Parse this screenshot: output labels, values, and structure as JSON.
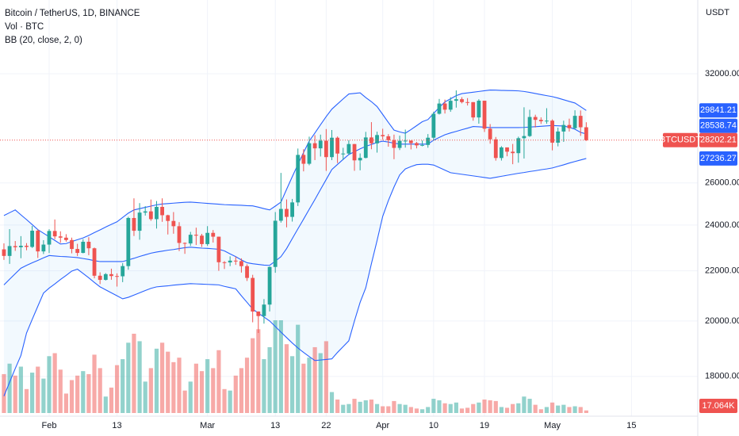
{
  "chart_data": {
    "type": "candlestick",
    "title": "Bitcoin / TetherUS, 1D, BINANCE",
    "symbol": "BTCUSDT",
    "ylabel": "USDT",
    "log_scale": true,
    "grid": true,
    "ylim": [
      16440,
      36810
    ],
    "yticks": [
      {
        "value": 18000,
        "label": "18000.00"
      },
      {
        "value": 20000,
        "label": "20000.00"
      },
      {
        "value": 22000,
        "label": "22000.00"
      },
      {
        "value": 24000,
        "label": "24000.00"
      },
      {
        "value": 26000,
        "label": "26000.00"
      },
      {
        "value": 32000,
        "label": "32000.00"
      }
    ],
    "categories": [
      null,
      null,
      null,
      null,
      null,
      null,
      null,
      null,
      "Feb",
      null,
      null,
      null,
      null,
      null,
      null,
      null,
      null,
      null,
      null,
      null,
      "13",
      null,
      null,
      null,
      null,
      null,
      null,
      null,
      null,
      null,
      null,
      null,
      null,
      null,
      null,
      null,
      "Mar",
      null,
      null,
      null,
      null,
      null,
      null,
      null,
      null,
      null,
      null,
      null,
      "13",
      null,
      null,
      null,
      null,
      null,
      null,
      null,
      null,
      "22",
      null,
      null,
      null,
      null,
      null,
      null,
      null,
      null,
      null,
      "Apr",
      null,
      null,
      null,
      null,
      null,
      null,
      null,
      null,
      "10",
      null,
      null,
      null,
      null,
      null,
      null,
      null,
      null,
      "19",
      null,
      null,
      null,
      null,
      null,
      null,
      null,
      null,
      null,
      null,
      null,
      "May",
      null,
      null,
      null,
      null,
      null,
      null,
      null,
      null,
      null,
      null,
      null,
      null,
      null,
      "15"
    ],
    "up_color": "#26a69a",
    "down_color": "#ef5350",
    "ohlc": {
      "open": [
        22917,
        22632,
        23060,
        23009,
        23074,
        23023,
        23743,
        22827,
        23125,
        23732,
        23488,
        23431,
        23326,
        22933,
        22762,
        23249,
        22963,
        21796,
        21625,
        21862,
        21783,
        21773,
        22199,
        24324,
        23741,
        24574,
        24632,
        24271,
        24842,
        24453,
        24188,
        23947,
        23198,
        23175,
        23561,
        23522,
        23147,
        23646,
        23475,
        22362,
        22354,
        22430,
        22410,
        22197,
        21705,
        20363,
        20188,
        20633,
        22163,
        24197,
        24746,
        24375,
        25055,
        27423,
        26965,
        28038,
        27767,
        28175,
        27307,
        28333,
        27493,
        27494,
        27994,
        27139,
        27268,
        28348,
        28033,
        28478,
        28411,
        28200,
        27790,
        28169,
        28176,
        28045,
        27923,
        27947,
        28333,
        29653,
        30235,
        29884,
        30394,
        30485,
        30318,
        30315,
        29446,
        30398,
        28823,
        28246,
        27262,
        27816,
        27590,
        27514,
        28307,
        28422,
        29472,
        29312,
        29234,
        29268,
        28068,
        28669,
        29027,
        28849,
        29536,
        28902,
        null,
        null,
        null,
        null,
        null,
        null,
        null,
        null
      ],
      "high": [
        23180,
        23816,
        23282,
        23500,
        23189,
        23960,
        23800,
        23320,
        23812,
        24255,
        23715,
        23587,
        23433,
        23158,
        23364,
        23452,
        22995,
        21939,
        21906,
        22090,
        21894,
        22322,
        24380,
        25250,
        25022,
        24877,
        25192,
        25121,
        25250,
        24476,
        24600,
        24132,
        23219,
        23689,
        23880,
        23600,
        23950,
        23773,
        23478,
        22410,
        22614,
        22603,
        22528,
        22275,
        21834,
        20367,
        20850,
        22185,
        24600,
        26500,
        25199,
        25222,
        27756,
        27725,
        28390,
        28473,
        28500,
        28804,
        28749,
        28400,
        27795,
        28194,
        28000,
        27500,
        28650,
        29185,
        28660,
        28821,
        28530,
        28500,
        28444,
        28775,
        28190,
        28111,
        28185,
        28530,
        29771,
        30500,
        30462,
        30600,
        31000,
        30600,
        30549,
        30320,
        30485,
        30400,
        29076,
        28374,
        27882,
        27816,
        28000,
        28390,
        30020,
        29880,
        29599,
        29450,
        29967,
        29337,
        28880,
        29266,
        29379,
        29850,
        29840,
        29178,
        null,
        null,
        null,
        null,
        null,
        null,
        null,
        null
      ],
      "low": [
        22462,
        22292,
        22850,
        22534,
        22878,
        22978,
        22546,
        22714,
        22760,
        23363,
        23204,
        23253,
        22745,
        22629,
        22745,
        22665,
        21688,
        21451,
        21599,
        21630,
        21351,
        21532,
        22047,
        23505,
        23339,
        24436,
        24193,
        23840,
        24148,
        23574,
        23608,
        22841,
        22722,
        23068,
        23106,
        23020,
        23067,
        23215,
        22000,
        22077,
        22198,
        22250,
        21927,
        21580,
        19950,
        19549,
        19900,
        20366,
        21919,
        24111,
        23896,
        24158,
        24885,
        26578,
        26888,
        27154,
        27339,
        26601,
        27153,
        27000,
        27166,
        27423,
        26606,
        26631,
        27243,
        27720,
        27542,
        28220,
        27856,
        27200,
        27676,
        27805,
        27711,
        27766,
        27876,
        27800,
        28170,
        29610,
        29666,
        29762,
        30000,
        30244,
        30122,
        29262,
        29100,
        28645,
        28014,
        27125,
        27130,
        27351,
        26942,
        27020,
        27235,
        28376,
        28891,
        29088,
        29096,
        27660,
        27872,
        28111,
        28669,
        28800,
        28430,
        28161,
        null,
        null,
        null,
        null,
        null,
        null,
        null,
        null
      ],
      "close": [
        22632,
        23060,
        23009,
        23074,
        23023,
        23743,
        22827,
        23125,
        23732,
        23488,
        23431,
        23326,
        22933,
        22762,
        23249,
        22963,
        21796,
        21625,
        21862,
        21783,
        21773,
        22199,
        24324,
        23741,
        24574,
        24632,
        24271,
        24842,
        24453,
        24188,
        23947,
        23198,
        23175,
        23561,
        23522,
        23147,
        23646,
        23475,
        22362,
        22354,
        22430,
        22410,
        22197,
        21705,
        20363,
        20188,
        20633,
        22163,
        24197,
        24746,
        24375,
        25055,
        27423,
        26965,
        28038,
        27767,
        28175,
        27307,
        28333,
        27493,
        27494,
        27994,
        27139,
        27268,
        28348,
        28033,
        28478,
        28411,
        28200,
        27790,
        28169,
        28176,
        28045,
        27923,
        27947,
        28333,
        29653,
        30235,
        29884,
        30394,
        30485,
        30318,
        30315,
        29446,
        30398,
        28823,
        28246,
        27262,
        27816,
        27590,
        27514,
        28307,
        28422,
        29472,
        29312,
        29234,
        29268,
        28068,
        28669,
        29027,
        28849,
        29536,
        28902,
        28202.21,
        null,
        null,
        null,
        null,
        null,
        null,
        null,
        null
      ]
    },
    "volume": {
      "name": "Vol · BTC",
      "values": [
        260000,
        330000,
        250000,
        310000,
        160000,
        270000,
        310000,
        230000,
        380000,
        400000,
        290000,
        130000,
        220000,
        250000,
        280000,
        260000,
        390000,
        300000,
        110000,
        170000,
        320000,
        360000,
        470000,
        530000,
        480000,
        210000,
        300000,
        430000,
        470000,
        410000,
        340000,
        370000,
        150000,
        210000,
        330000,
        280000,
        360000,
        300000,
        420000,
        160000,
        150000,
        250000,
        300000,
        370000,
        500000,
        560000,
        360000,
        440000,
        620000,
        620000,
        460000,
        380000,
        590000,
        330000,
        370000,
        440000,
        400000,
        480000,
        140000,
        90000,
        55000,
        60000,
        95000,
        75000,
        85000,
        90000,
        60000,
        45000,
        45000,
        80000,
        60000,
        55000,
        40000,
        30000,
        25000,
        40000,
        95000,
        85000,
        65000,
        60000,
        70000,
        30000,
        35000,
        60000,
        70000,
        90000,
        85000,
        80000,
        40000,
        35000,
        60000,
        65000,
        110000,
        95000,
        55000,
        25000,
        40000,
        70000,
        50000,
        55000,
        40000,
        45000,
        40000,
        17064,
        null,
        null,
        null,
        null,
        null,
        null,
        null,
        null
      ],
      "last_label": "17.064K"
    },
    "bands": {
      "name": "BB (20, close, 2, 0)",
      "color": "#2962ff",
      "fill": "rgba(33,150,243,0.06)",
      "upper": [
        24440,
        24570,
        24700,
        24470,
        24250,
        24020,
        23790,
        23630,
        23470,
        23310,
        23150,
        23170,
        23260,
        23340,
        23420,
        23530,
        23660,
        23780,
        23910,
        24030,
        24150,
        24350,
        24550,
        24700,
        24760,
        24820,
        24880,
        24940,
        24980,
        25000,
        25020,
        25040,
        25060,
        25070,
        25050,
        25030,
        25010,
        24990,
        24970,
        24950,
        24940,
        24930,
        24920,
        24900,
        24890,
        24830,
        24760,
        24700,
        24880,
        25070,
        25690,
        26310,
        26930,
        27550,
        28150,
        28585,
        29040,
        29495,
        29915,
        30209,
        30503,
        30790,
        30825,
        30860,
        30580,
        30342,
        30062,
        29614,
        29166,
        28746,
        28648,
        28578,
        28774,
        28991,
        29208,
        29327,
        29670,
        30013,
        30328,
        30510,
        30692,
        30811,
        30853,
        30895,
        30937,
        30979,
        31021,
        31014,
        31000,
        30993,
        30986,
        30972,
        30937,
        30881,
        30818,
        30755,
        30692,
        30636,
        30552,
        30454,
        30357,
        30265,
        30055,
        29841.21,
        null,
        null,
        null,
        null,
        null,
        null,
        null,
        null
      ],
      "basis": [
        21420,
        21650,
        21880,
        22110,
        22230,
        22340,
        22440,
        22550,
        22650,
        22630,
        22610,
        22600,
        22580,
        22560,
        22520,
        22480,
        22430,
        22390,
        22390,
        22390,
        22390,
        22390,
        22460,
        22530,
        22610,
        22680,
        22750,
        22800,
        22840,
        22880,
        22910,
        22950,
        22990,
        23010,
        22990,
        22970,
        22960,
        22940,
        22920,
        22850,
        22720,
        22600,
        22460,
        22340,
        22300,
        22270,
        22240,
        22230,
        22410,
        22600,
        22950,
        23390,
        23830,
        24270,
        24730,
        25190,
        25680,
        26170,
        26670,
        26930,
        27190,
        27440,
        27590,
        27740,
        27870,
        27970,
        28080,
        28150,
        28100,
        28040,
        27990,
        27990,
        27990,
        27990,
        27990,
        27990,
        28200,
        28347,
        28494,
        28592,
        28676,
        28767,
        28851,
        28942,
        28928,
        28907,
        28886,
        28886,
        28886,
        28886,
        28886,
        28886,
        28893,
        28914,
        28935,
        28956,
        28977,
        28998,
        28984,
        28970,
        28900,
        28795,
        28620,
        28538.74,
        null,
        null,
        null,
        null,
        null,
        null,
        null,
        null
      ],
      "lower": [
        17340,
        17800,
        18270,
        18730,
        19550,
        20060,
        20570,
        21090,
        21290,
        21460,
        21640,
        21810,
        21990,
        22070,
        21890,
        21710,
        21520,
        21340,
        21220,
        21100,
        20980,
        20860,
        20920,
        21010,
        21100,
        21190,
        21280,
        21340,
        21360,
        21380,
        21410,
        21430,
        21450,
        21470,
        21460,
        21450,
        21440,
        21430,
        21420,
        21360,
        21310,
        21260,
        20980,
        20720,
        20460,
        20300,
        20150,
        20000,
        19790,
        19580,
        19380,
        19180,
        19000,
        18840,
        18690,
        18550,
        18570,
        18590,
        18610,
        18840,
        19050,
        19260,
        20000,
        20720,
        21300,
        22300,
        23300,
        24400,
        25140,
        25800,
        26400,
        26700,
        26820,
        26920,
        26940,
        26940,
        26900,
        26770,
        26640,
        26510,
        26470,
        26430,
        26390,
        26350,
        26310,
        26270,
        26230,
        26280,
        26330,
        26380,
        26430,
        26480,
        26520,
        26570,
        26610,
        26660,
        26700,
        26750,
        26830,
        26910,
        27000,
        27080,
        27160,
        27236.27,
        null,
        null,
        null,
        null,
        null,
        null,
        null,
        null
      ]
    }
  }
}
